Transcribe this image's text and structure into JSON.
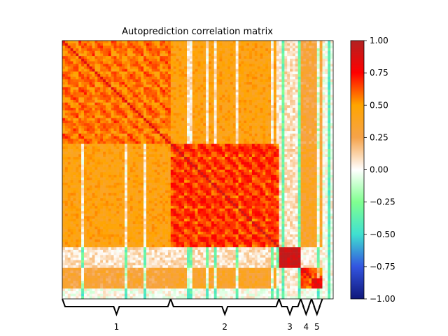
{
  "chart_data": {
    "type": "heatmap",
    "title": "Autoprediction correlation matrix",
    "colorbar": {
      "range": [
        -1.0,
        1.0
      ],
      "ticks": [
        "1.00",
        "0.75",
        "0.50",
        "0.25",
        "0.00",
        "−0.25",
        "−0.50",
        "−0.75",
        "−1.00"
      ],
      "tick_values": [
        1.0,
        0.75,
        0.5,
        0.25,
        0.0,
        -0.25,
        -0.5,
        -0.75,
        -1.0
      ],
      "colormap_stops": [
        {
          "v": -1.0,
          "c": "#10177a"
        },
        {
          "v": -0.75,
          "c": "#3355e0"
        },
        {
          "v": -0.5,
          "c": "#40e0d0"
        },
        {
          "v": -0.25,
          "c": "#80ff90"
        },
        {
          "v": 0.0,
          "c": "#ffffff"
        },
        {
          "v": 0.25,
          "c": "#f5a34a"
        },
        {
          "v": 0.5,
          "c": "#ffa500"
        },
        {
          "v": 0.75,
          "c": "#ff0000"
        },
        {
          "v": 1.0,
          "c": "#b22222"
        }
      ]
    },
    "groups": [
      {
        "label": "1",
        "start": 0,
        "end": 40,
        "within": 0.65,
        "diag": 0.85
      },
      {
        "label": "2",
        "start": 40,
        "end": 80,
        "within": 0.75,
        "diag": 0.92
      },
      {
        "label": "3",
        "start": 80,
        "end": 88,
        "within": 0.9,
        "diag": 0.95
      },
      {
        "label": "4",
        "start": 88,
        "end": 92,
        "within": 0.7,
        "diag": 0.9
      },
      {
        "label": "5",
        "start": 92,
        "end": 96,
        "within": 0.8,
        "diag": 0.9
      }
    ],
    "n_features": 100,
    "cross_block": {
      "1-2": 0.45,
      "1-3": 0.08,
      "2-3": 0.08,
      "1-4": 0.3,
      "1-5": 0.3,
      "2-4": 0.35,
      "2-5": 0.35,
      "3-4": 0.05,
      "3-5": 0.05,
      "4-5": 0.6,
      "rest": 0.0
    }
  }
}
